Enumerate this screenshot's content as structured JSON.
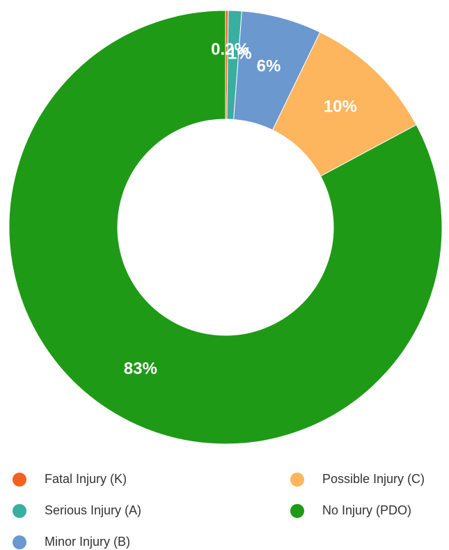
{
  "chart_data": {
    "type": "pie",
    "donut": true,
    "legend_position": "bottom",
    "slices": [
      {
        "name": "Fatal Injury (K)",
        "value": 0.2,
        "label": "0.2%",
        "color": "#f26322"
      },
      {
        "name": "Serious Injury (A)",
        "value": 1,
        "label": "1%",
        "color": "#3aaea0"
      },
      {
        "name": "Minor Injury (B)",
        "value": 6,
        "label": "6%",
        "color": "#6a98cf"
      },
      {
        "name": "Possible Injury (C)",
        "value": 10,
        "label": "10%",
        "color": "#fdb55e"
      },
      {
        "name": "No Injury (PDO)",
        "value": 83,
        "label": "83%",
        "color": "#1f9a17"
      }
    ]
  }
}
